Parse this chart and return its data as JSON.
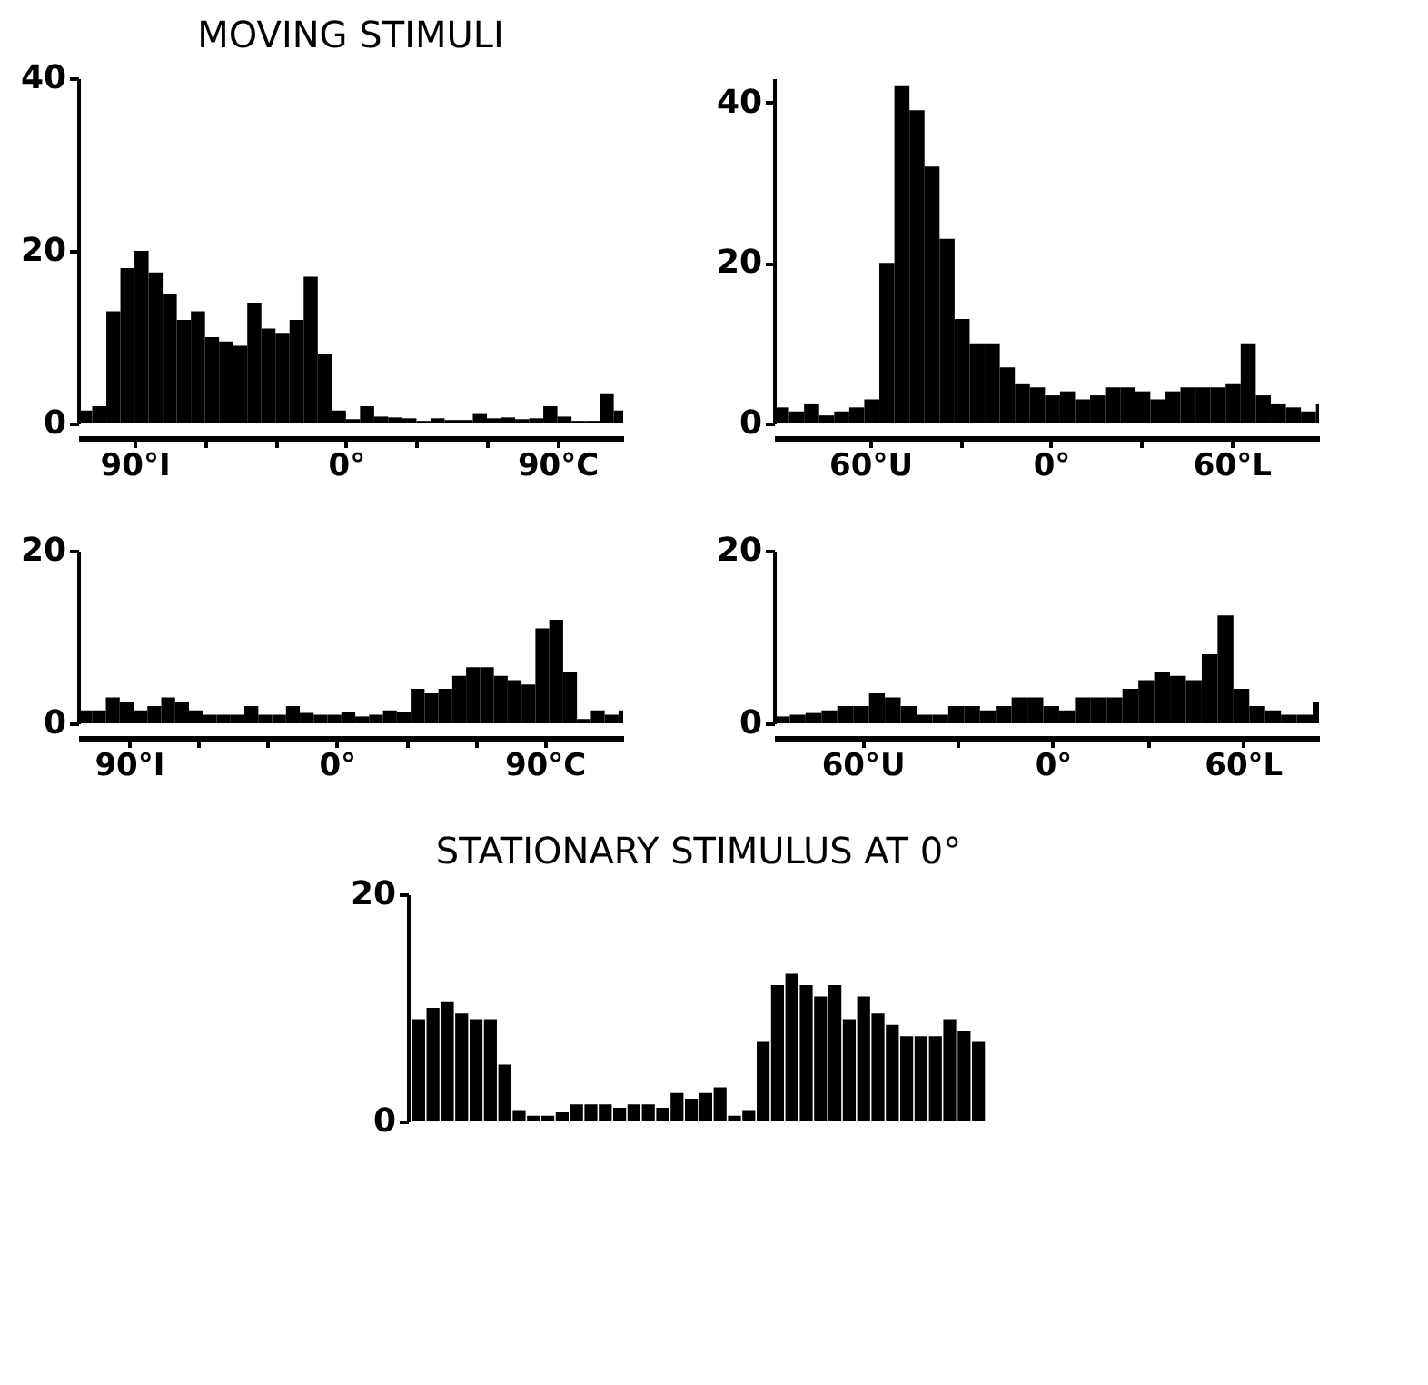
{
  "chart_data": [
    {
      "type": "histogram",
      "title": "MOVING STIMULI",
      "color": "#000000",
      "grid": false,
      "bins": [
        -114,
        -108,
        -102,
        -96,
        -90,
        -84,
        -78,
        -72,
        -66,
        -60,
        -54,
        -48,
        -42,
        -36,
        -30,
        -24,
        -18,
        -12,
        -6,
        0,
        6,
        12,
        18,
        24,
        30,
        36,
        42,
        48,
        54,
        60,
        66,
        72,
        78,
        84,
        90,
        96,
        102,
        108,
        114,
        118
      ],
      "values": [
        1.5,
        2,
        13,
        18,
        20,
        17.5,
        15,
        12,
        13,
        10,
        9.5,
        9,
        14,
        11,
        10.5,
        12,
        17,
        8,
        1.5,
        0.5,
        2,
        0.8,
        0.7,
        0.6,
        0.3,
        0.6,
        0.4,
        0.4,
        1.2,
        0.6,
        0.7,
        0.5,
        0.6,
        2,
        0.8,
        0.3,
        0.3,
        3.5,
        1.5
      ],
      "xlim": [
        -114,
        118
      ],
      "xticks": [
        {
          "value": -90,
          "label": "90°I"
        },
        {
          "value": -60,
          "label": null
        },
        {
          "value": -30,
          "label": null
        },
        {
          "value": 0,
          "label": "0°"
        },
        {
          "value": 30,
          "label": null
        },
        {
          "value": 60,
          "label": null
        },
        {
          "value": 90,
          "label": "90°C"
        }
      ],
      "ylim": [
        0,
        40
      ],
      "yticks": [
        0,
        20,
        40
      ]
    },
    {
      "type": "histogram",
      "color": "#000000",
      "grid": false,
      "bins": [
        -92,
        -87,
        -82,
        -77,
        -72,
        -67,
        -62,
        -57,
        -52,
        -47,
        -42,
        -37,
        -32,
        -27,
        -22,
        -17,
        -12,
        -7,
        -2,
        3,
        8,
        13,
        18,
        23,
        28,
        33,
        38,
        43,
        48,
        53,
        58,
        63,
        68,
        73,
        78,
        83,
        88,
        89
      ],
      "values": [
        2,
        1.5,
        2.5,
        1,
        1.5,
        2,
        3,
        20,
        42,
        39,
        32,
        23,
        13,
        10,
        10,
        7,
        5,
        4.5,
        3.5,
        4,
        3,
        3.5,
        4.5,
        4.5,
        4,
        3,
        4,
        4.5,
        4.5,
        4.5,
        5,
        10,
        3.5,
        2.5,
        2,
        1.5,
        2.5
      ],
      "xlim": [
        -92,
        89
      ],
      "xticks": [
        {
          "value": -60,
          "label": "60°U"
        },
        {
          "value": -30,
          "label": null
        },
        {
          "value": 0,
          "label": "0°"
        },
        {
          "value": 30,
          "label": null
        },
        {
          "value": 60,
          "label": "60°L"
        }
      ],
      "ylim": [
        0,
        43
      ],
      "yticks": [
        0,
        20,
        40
      ]
    },
    {
      "type": "histogram",
      "color": "#000000",
      "grid": false,
      "bins": [
        -112,
        -106,
        -100,
        -94,
        -88,
        -82,
        -76,
        -70,
        -64,
        -58,
        -52,
        -46,
        -40,
        -34,
        -28,
        -22,
        -16,
        -10,
        -4,
        2,
        8,
        14,
        20,
        26,
        32,
        38,
        44,
        50,
        56,
        62,
        68,
        74,
        80,
        86,
        92,
        98,
        104,
        110,
        116,
        122,
        124
      ],
      "values": [
        1.5,
        1.5,
        3,
        2.5,
        1.5,
        2,
        3,
        2.5,
        1.5,
        1,
        1,
        1,
        2,
        1,
        1,
        2,
        1.2,
        1,
        1,
        1.3,
        0.8,
        1,
        1.5,
        1.3,
        4,
        3.5,
        4,
        5.5,
        6.5,
        6.5,
        5.5,
        5,
        4.5,
        11,
        12,
        6,
        0.5,
        1.5,
        1,
        1.5
      ],
      "xlim": [
        -112,
        124
      ],
      "xticks": [
        {
          "value": -90,
          "label": "90°I"
        },
        {
          "value": -60,
          "label": null
        },
        {
          "value": -30,
          "label": null
        },
        {
          "value": 0,
          "label": "0°"
        },
        {
          "value": 30,
          "label": null
        },
        {
          "value": 60,
          "label": null
        },
        {
          "value": 90,
          "label": "90°C"
        }
      ],
      "ylim": [
        0,
        20
      ],
      "yticks": [
        0,
        20
      ]
    },
    {
      "type": "histogram",
      "color": "#000000",
      "grid": false,
      "bins": [
        -88,
        -83,
        -78,
        -73,
        -68,
        -63,
        -58,
        -53,
        -48,
        -43,
        -38,
        -33,
        -28,
        -23,
        -18,
        -13,
        -8,
        -3,
        2,
        7,
        12,
        17,
        22,
        27,
        32,
        37,
        42,
        47,
        52,
        57,
        62,
        67,
        72,
        77,
        82,
        84
      ],
      "values": [
        0.8,
        1,
        1.2,
        1.5,
        2,
        2,
        3.5,
        3,
        2,
        1,
        1,
        2,
        2,
        1.5,
        2,
        3,
        3,
        2,
        1.5,
        3,
        3,
        3,
        4,
        5,
        6,
        5.5,
        5,
        8,
        12.5,
        4,
        2,
        1.5,
        1,
        1,
        2.5
      ],
      "xlim": [
        -88,
        84
      ],
      "xticks": [
        {
          "value": -60,
          "label": "60°U"
        },
        {
          "value": -30,
          "label": null
        },
        {
          "value": 0,
          "label": "0°"
        },
        {
          "value": 30,
          "label": null
        },
        {
          "value": 60,
          "label": "60°L"
        }
      ],
      "ylim": [
        0,
        20
      ],
      "yticks": [
        0,
        20
      ]
    },
    {
      "type": "bar",
      "title": "STATIONARY STIMULUS AT 0°",
      "color": "#000000",
      "grid": false,
      "tick_labels": "y",
      "categories": [
        null,
        null,
        null,
        null,
        null,
        null,
        null,
        null,
        null,
        null,
        null,
        null,
        null,
        null,
        null,
        null,
        null,
        null,
        null,
        null,
        null,
        null,
        null,
        null,
        null,
        null,
        null,
        null,
        null,
        null,
        null,
        null,
        null,
        null,
        null,
        null,
        null,
        null,
        null,
        null
      ],
      "values": [
        9,
        10,
        10.5,
        9.5,
        9,
        9,
        5,
        1,
        0.5,
        0.5,
        0.8,
        1.5,
        1.5,
        1.5,
        1.2,
        1.5,
        1.5,
        1.2,
        2.5,
        2,
        2.5,
        3,
        0.5,
        1,
        7,
        12,
        13,
        12,
        11,
        12,
        9,
        11,
        9.5,
        8.5,
        7.5,
        7.5,
        7.5,
        9,
        8,
        7
      ],
      "ylim": [
        0,
        20
      ],
      "yticks": [
        0,
        20
      ]
    }
  ]
}
